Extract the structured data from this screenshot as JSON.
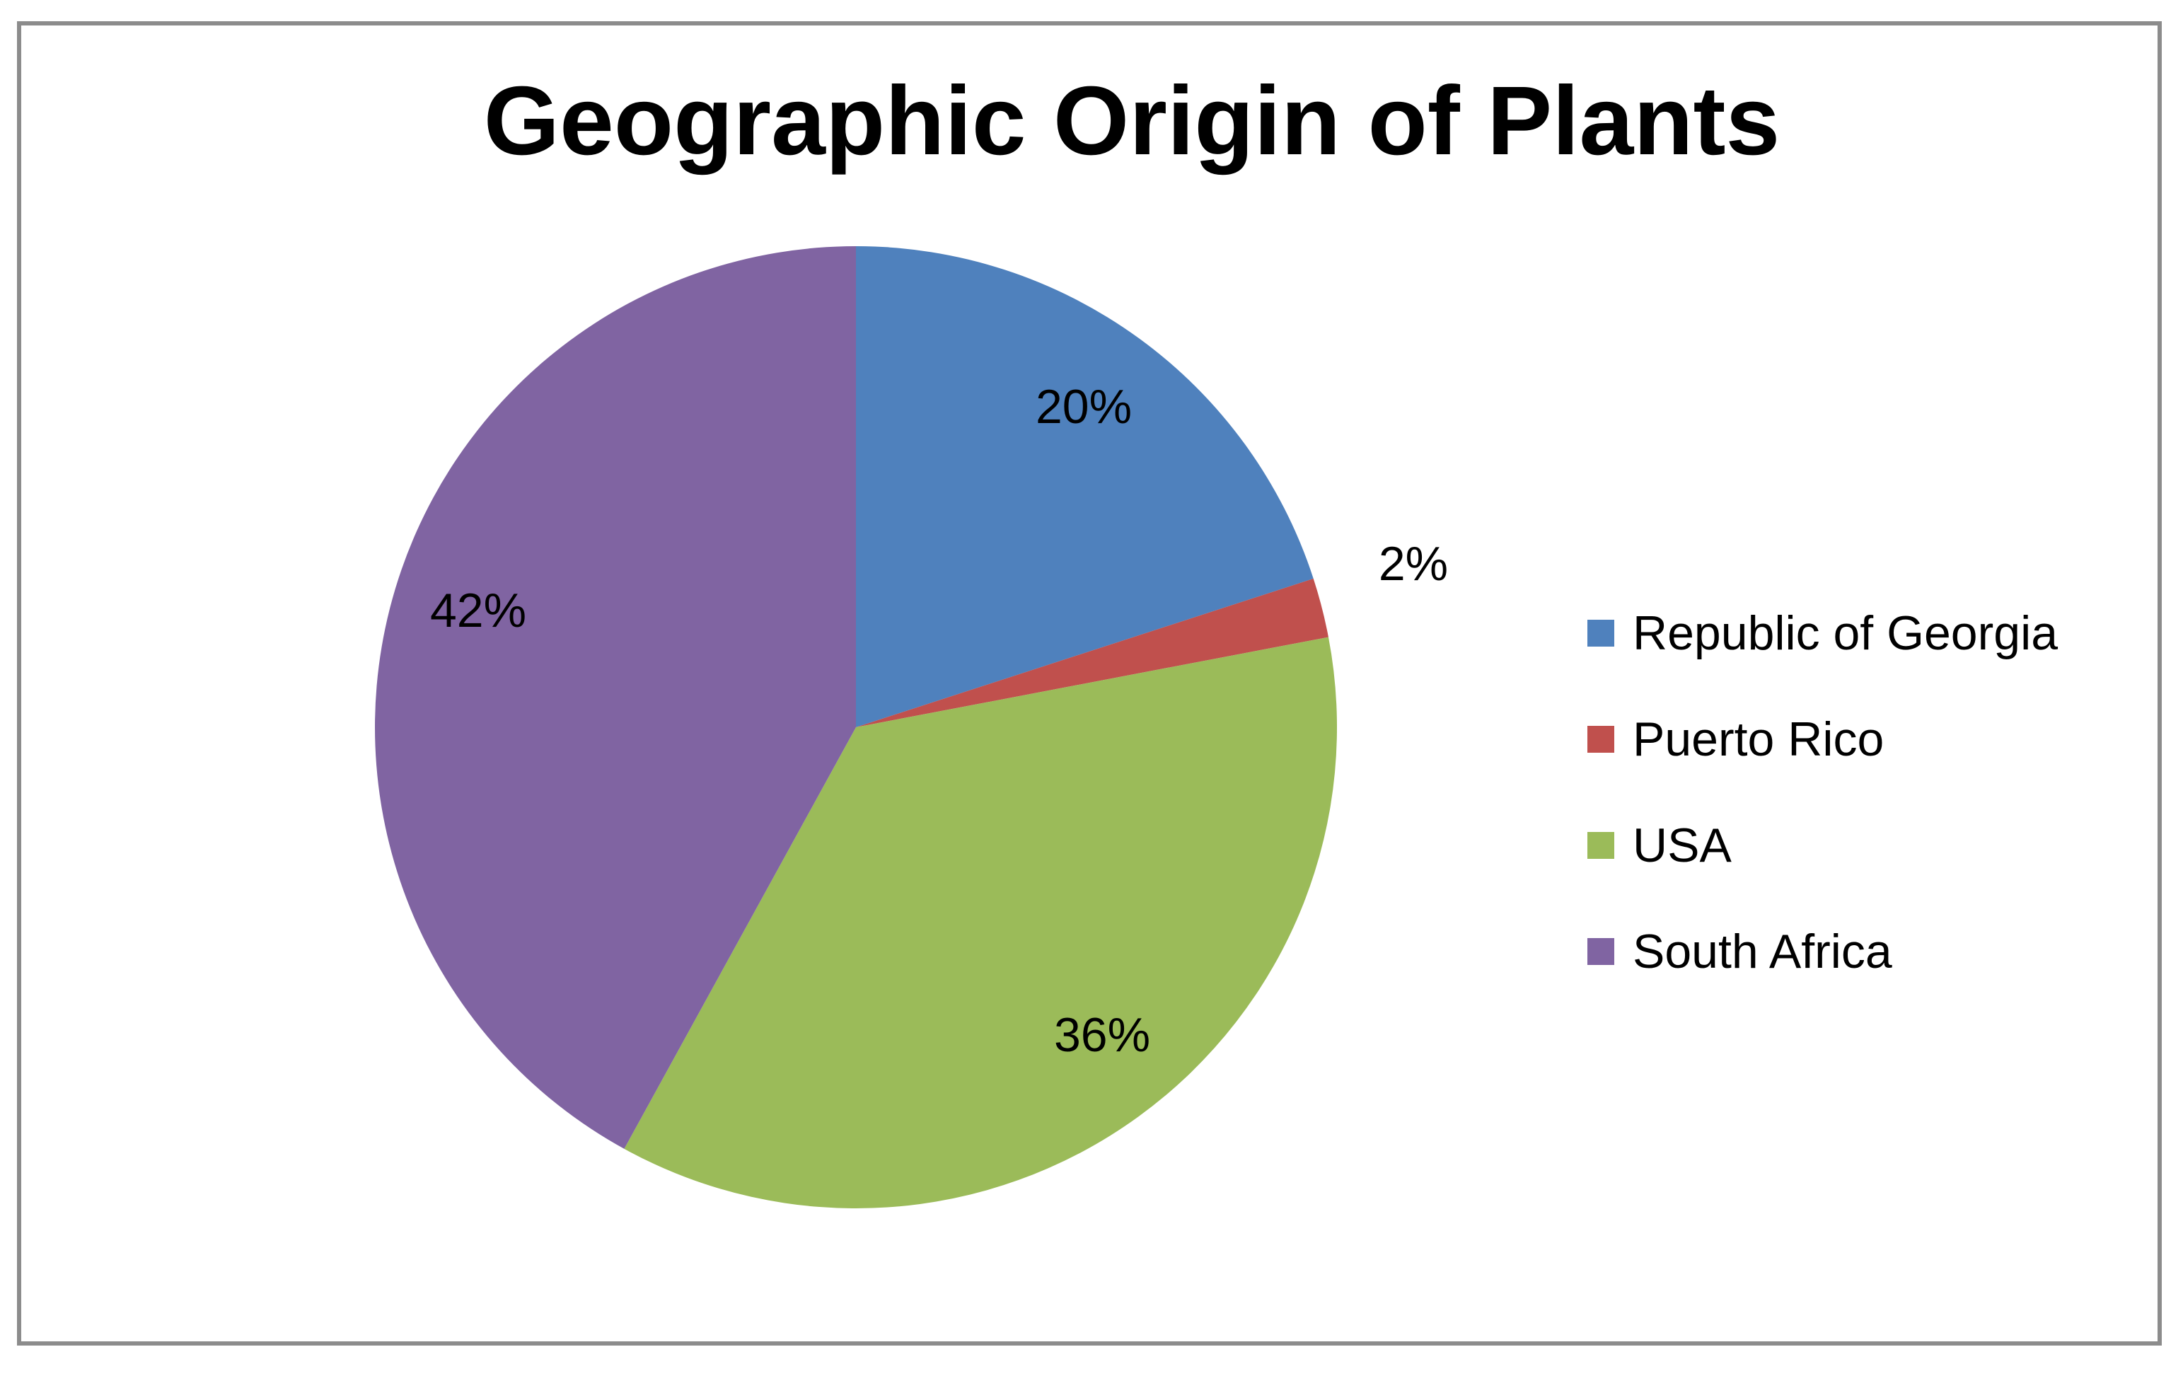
{
  "chart_data": {
    "type": "pie",
    "title": "Geographic Origin of Plants",
    "categories": [
      "Republic of Georgia",
      "Puerto Rico",
      "USA",
      "South Africa"
    ],
    "values": [
      20,
      2,
      36,
      42
    ],
    "labels": [
      "20%",
      "2%",
      "36%",
      "42%"
    ],
    "colors": [
      "#4f81bd",
      "#c0504d",
      "#9bbb59",
      "#8064a2"
    ],
    "start_angle_deg": 0,
    "direction": "clockwise",
    "legend_position": "right"
  }
}
